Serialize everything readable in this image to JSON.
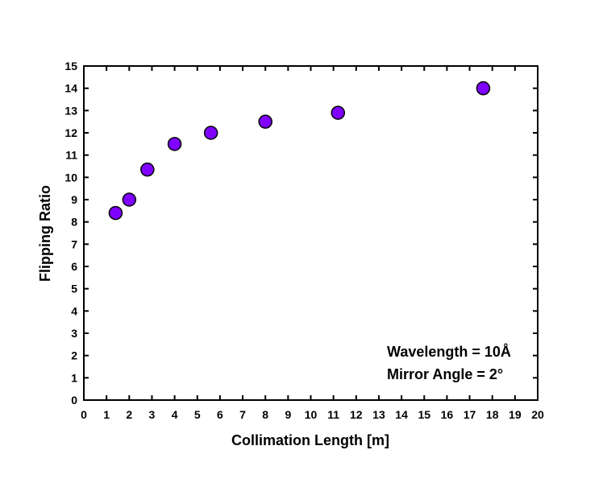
{
  "chart_data": {
    "type": "scatter",
    "x_label": "Collimation Length [m]",
    "y_label": "Flipping Ratio",
    "annotations": [
      "Wavelength = 10Å",
      "Mirror Angle = 2°"
    ],
    "series": [
      {
        "color": "#7f00ff",
        "x": [
          1.4,
          2,
          2.8,
          4,
          5.6,
          8,
          11.2,
          17.6
        ],
        "values": [
          8.4,
          9.0,
          10.35,
          11.5,
          12.0,
          12.5,
          12.9,
          14.0
        ]
      }
    ],
    "xlim": [
      0,
      20
    ],
    "xticks": [
      0,
      1,
      2,
      3,
      4,
      5,
      6,
      7,
      8,
      9,
      10,
      11,
      12,
      13,
      14,
      15,
      16,
      17,
      18,
      19,
      20
    ],
    "ylim": [
      0,
      15
    ],
    "yticks": [
      0,
      1,
      2,
      3,
      4,
      5,
      6,
      7,
      8,
      9,
      10,
      11,
      12,
      13,
      14,
      15
    ]
  }
}
